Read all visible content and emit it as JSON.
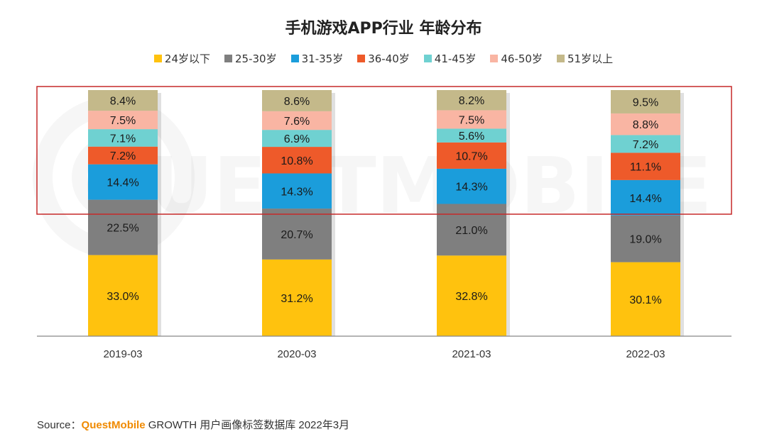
{
  "chart_data": {
    "type": "bar",
    "stacked": true,
    "title": "手机游戏APP行业 年龄分布",
    "categories": [
      "2019-03",
      "2020-03",
      "2021-03",
      "2022-03"
    ],
    "series": [
      {
        "name": "24岁以下",
        "color": "#FFC20E",
        "values": [
          33.0,
          31.2,
          32.8,
          30.1
        ],
        "labels": [
          "33.0%",
          "31.2%",
          "32.8%",
          "30.1%"
        ]
      },
      {
        "name": "25-30岁",
        "color": "#7F7F7F",
        "values": [
          22.5,
          20.7,
          21.0,
          19.0
        ],
        "labels": [
          "22.5%",
          "20.7%",
          "21.0%",
          "19.0%"
        ]
      },
      {
        "name": "31-35岁",
        "color": "#1B9DDB",
        "values": [
          14.4,
          14.3,
          14.3,
          14.4
        ],
        "labels": [
          "14.4%",
          "14.3%",
          "14.3%",
          "14.4%"
        ]
      },
      {
        "name": "36-40岁",
        "color": "#EE5A2A",
        "values": [
          7.2,
          10.8,
          10.7,
          11.1
        ],
        "labels": [
          "7.2%",
          "10.8%",
          "10.7%",
          "11.1%"
        ]
      },
      {
        "name": "41-45岁",
        "color": "#6FD1D1",
        "values": [
          7.1,
          6.9,
          5.6,
          7.2
        ],
        "labels": [
          "7.1%",
          "6.9%",
          "5.6%",
          "7.2%"
        ]
      },
      {
        "name": "46-50岁",
        "color": "#F9B5A3",
        "values": [
          7.5,
          7.6,
          7.5,
          8.8
        ],
        "labels": [
          "7.5%",
          "7.6%",
          "7.5%",
          "8.8%"
        ]
      },
      {
        "name": "51岁以上",
        "color": "#C4B98A",
        "values": [
          8.4,
          8.6,
          8.2,
          9.5
        ],
        "labels": [
          "8.4%",
          "8.6%",
          "8.2%",
          "9.5%"
        ]
      }
    ],
    "ylim": [
      0,
      100
    ],
    "grid": false,
    "legend_position": "top",
    "highlight": {
      "description_none": true,
      "border_color": "#C62828"
    },
    "watermark": "QUESTMOBILE"
  },
  "source": {
    "prefix": "Source：",
    "brand": "QuestMobile",
    "suffix": " GROWTH 用户画像标签数据库 2022年3月"
  }
}
